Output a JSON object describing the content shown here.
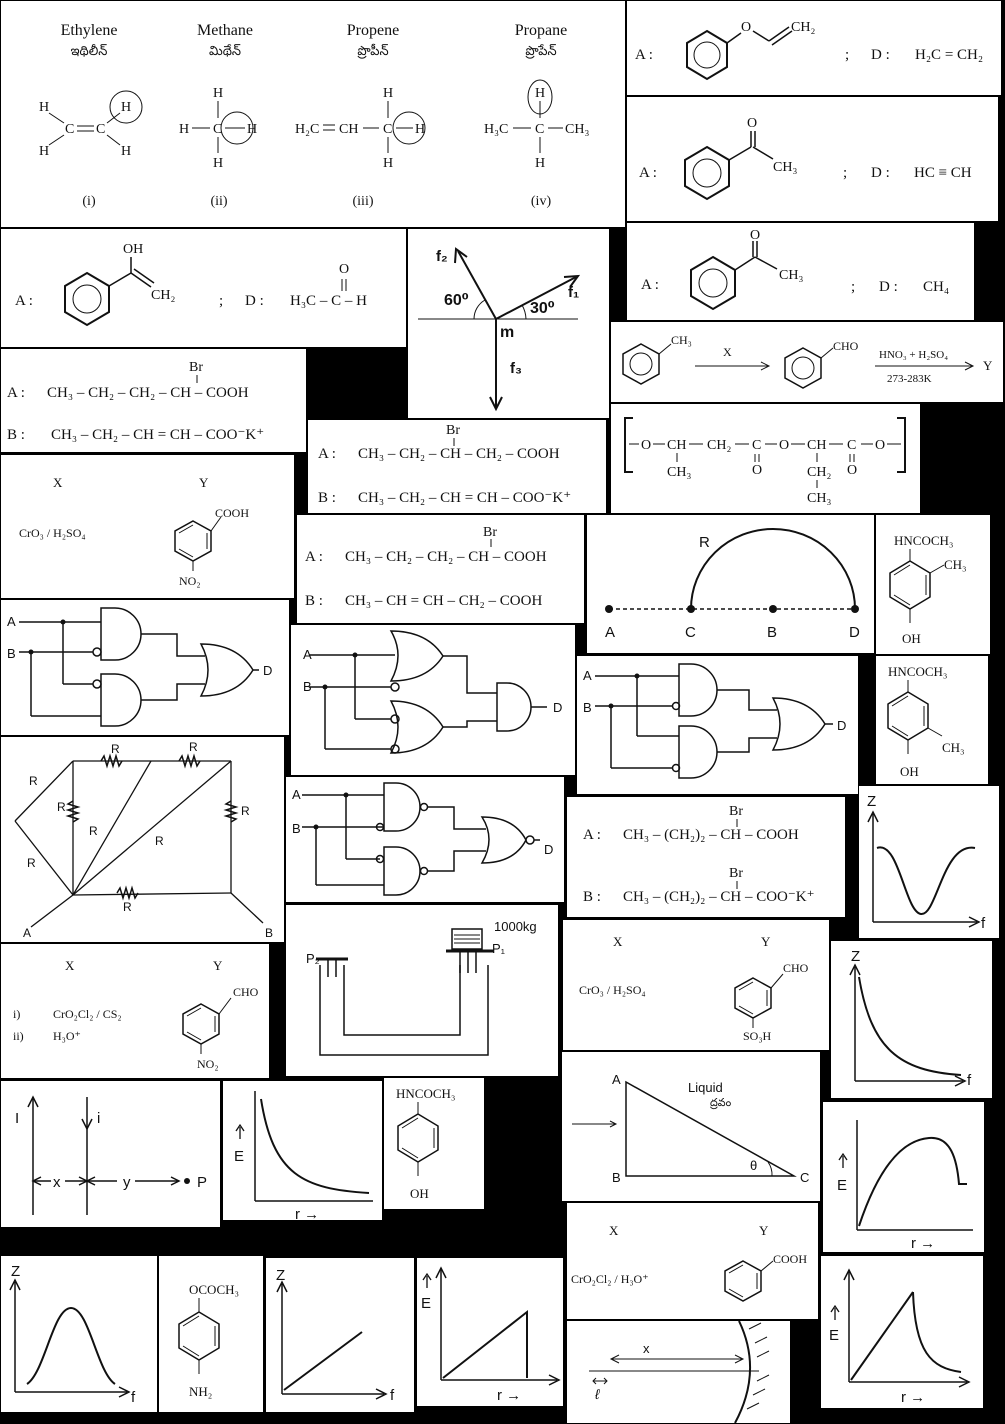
{
  "hydrocarbons": {
    "names": [
      "Ethylene",
      "Methane",
      "Propene",
      "Propane"
    ],
    "telugu": [
      "ఇథిలీన్",
      "మిథేన్",
      "ప్రొపీన్",
      "ప్రొపేన్"
    ],
    "labels": [
      "(i)",
      "(ii)",
      "(iii)",
      "(iv)"
    ],
    "atoms": {
      "H": "H",
      "C": "C",
      "H2C": "H₂C",
      "H3C": "H₃C",
      "CH": "CH",
      "CH3": "CH₃"
    }
  },
  "option_vinyl_ether": {
    "a": "A :",
    "ch2": "CH₂",
    "sep": ";",
    "d": "D :",
    "d_formula": "H₂C = CH₂"
  },
  "option_acetophenone_1": {
    "a": "A :",
    "o": "O",
    "ch3": "CH₃",
    "sep": ";",
    "d": "D :",
    "d_formula": "HC ≡ CH"
  },
  "option_enol": {
    "a": "A :",
    "oh": "OH",
    "ch2": "CH₂",
    "sep": ";",
    "d": "D :",
    "d_formula": "H₃C – C – H",
    "o": "O"
  },
  "forces": {
    "f2": "f₂",
    "f1": "f₁",
    "f3": "f₃",
    "angle60": "60⁰",
    "angle30": "30⁰",
    "m": "m"
  },
  "option_acetophenone_2": {
    "a": "A :",
    "o": "O",
    "ch3": "CH₃",
    "sep": ";",
    "d": "D :",
    "d_formula": "CH₄"
  },
  "toluene_reaction": {
    "ch3": "CH₃",
    "x": "X",
    "cho": "CHO",
    "reagent": "HNO₃ + H₂SO₄",
    "temp": "273-283K",
    "y": "Y"
  },
  "bromo_acid_1": {
    "br": "Br",
    "a": "A :",
    "a_formula": "CH₃ – CH₂ – CH₂ – CH – COOH",
    "b": "B :",
    "b_formula": "CH₃ – CH₂ – CH = CH – COO⁻K⁺"
  },
  "bromo_acid_2": {
    "br": "Br",
    "a": "A :",
    "a_formula": "CH₃ – CH₂ – CH – CH₂ – COOH",
    "b": "B :",
    "b_formula": "CH₃ – CH₂ – CH = CH – COO⁻K⁺"
  },
  "polymer": {
    "o": "O",
    "ch": "CH",
    "ch2": "CH₂",
    "c": "C",
    "ch3": "CH₃",
    "dbl_o": "O"
  },
  "reaction_crO3": {
    "x": "X",
    "y": "Y",
    "reagent": "CrO₃ / H₂SO₄",
    "cooh": "COOH",
    "no2": "NO₂"
  },
  "bromo_acid_3": {
    "br": "Br",
    "a": "A :",
    "a_formula": "CH₃ – CH₂ – CH₂ – CH – COOH",
    "b": "B :",
    "b_formula": "CH₃ – CH = CH – CH₂ – COOH"
  },
  "semicircle": {
    "r": "R",
    "a": "A",
    "c": "C",
    "b": "B",
    "d": "D"
  },
  "paracetamol_meta": {
    "top": "HNCOCH₃",
    "ch3": "CH₃",
    "oh": "OH"
  },
  "logic1": {
    "a": "A",
    "b": "B",
    "d": "D"
  },
  "logic2": {
    "a": "A",
    "b": "B",
    "d": "D"
  },
  "logic3": {
    "a": "A",
    "b": "B",
    "d": "D"
  },
  "logic4": {
    "a": "A",
    "b": "B",
    "d": "D"
  },
  "paracetamol_ortho": {
    "top": "HNCOCH₃",
    "ch3": "CH₃",
    "oh": "OH"
  },
  "resistor_network": {
    "r": "R",
    "a": "A",
    "b": "B"
  },
  "bromo_acid_4": {
    "br": "Br",
    "a": "A :",
    "a_formula": "CH₃ – (CH₂)₂ – CH – COOH",
    "b": "B :",
    "b_formula": "CH₃ – (CH₂)₂ – CH – COO⁻K⁺"
  },
  "z_graph_dip": {
    "z": "Z",
    "f": "f"
  },
  "hydraulic": {
    "mass": "1000kg",
    "p1": "P₁",
    "p2": "P₂"
  },
  "reaction_sulfonic": {
    "x": "X",
    "y": "Y",
    "reagent": "CrO₃ / H₂SO₄",
    "cho": "CHO",
    "so3h": "SO₃H"
  },
  "z_graph_decay": {
    "z": "Z",
    "f": "f"
  },
  "reaction_etard": {
    "x": "X",
    "y": "Y",
    "step1_label": "i)",
    "step1": "CrO₂Cl₂ / CS₂",
    "step2_label": "ii)",
    "step2": "H₃O⁺",
    "cho": "CHO",
    "no2": "NO₂"
  },
  "wires": {
    "big_i": "I",
    "small_i": "i",
    "x": "x",
    "y": "y",
    "p": "P"
  },
  "e_graph_decay": {
    "e": "E",
    "r": "r →"
  },
  "paracetamol": {
    "top": "HNCOCH₃",
    "oh": "OH"
  },
  "prism": {
    "a": "A",
    "b": "B",
    "c": "C",
    "liquid": "Liquid",
    "liquid_te": "ద్రవం",
    "theta": "θ"
  },
  "e_graph_peak": {
    "e": "E",
    "r": "r →"
  },
  "reaction_benzoic": {
    "x": "X",
    "y": "Y",
    "reagent": "CrO₂Cl₂ / H₃O⁺",
    "cooh": "COOH"
  },
  "z_graph_bell": {
    "z": "Z",
    "f": "f"
  },
  "aminophenyl_acetate": {
    "top": "OCOCH₃",
    "nh2": "NH₂"
  },
  "z_graph_linear": {
    "z": "Z",
    "f": "f"
  },
  "e_graph_triangle": {
    "e": "E",
    "r": "r →"
  },
  "mirror": {
    "x": "x",
    "l": "ℓ"
  },
  "e_graph_triangle_decay": {
    "e": "E",
    "r": "r →"
  }
}
